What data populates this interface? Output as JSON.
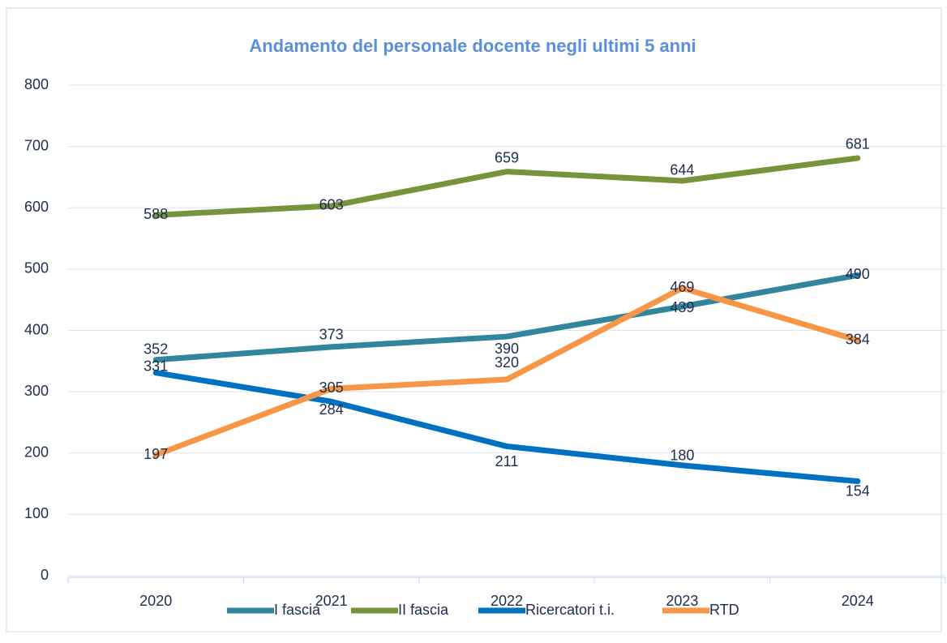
{
  "chart_data": {
    "type": "line",
    "title": "Andamento del personale docente negli ultimi 5 anni",
    "categories": [
      "2020",
      "2021",
      "2022",
      "2023",
      "2024"
    ],
    "series": [
      {
        "name": "I fascia",
        "color": "#31859c",
        "values": [
          352,
          373,
          390,
          439,
          490
        ]
      },
      {
        "name": "II fascia",
        "color": "#77933c",
        "values": [
          588,
          603,
          659,
          644,
          681
        ]
      },
      {
        "name": "Ricercatori t.i.",
        "color": "#0070c0",
        "values": [
          331,
          284,
          211,
          180,
          154
        ]
      },
      {
        "name": "RTD",
        "color": "#f79646",
        "values": [
          197,
          305,
          320,
          469,
          384
        ]
      }
    ],
    "ylim": [
      0,
      800
    ],
    "yticks": [
      0,
      100,
      200,
      300,
      400,
      500,
      600,
      700,
      800
    ],
    "grid": true,
    "legend": "bottom"
  }
}
